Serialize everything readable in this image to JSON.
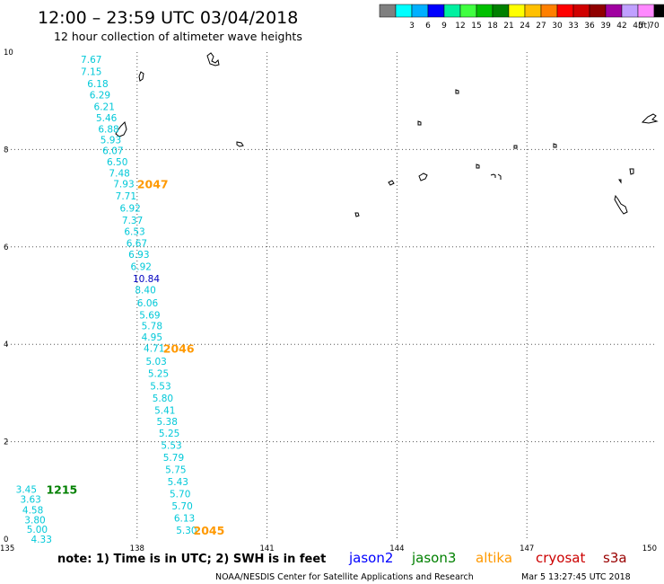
{
  "chart_data": {
    "type": "scatter",
    "title": "12:00 – 23:59 UTC 03/04/2018",
    "subtitle": "12 hour collection of altimeter wave heights",
    "xlim": [
      135,
      150
    ],
    "ylim": [
      0,
      10
    ],
    "x_ticks": [
      "135",
      "138",
      "141",
      "144",
      "147",
      "150"
    ],
    "y_ticks": [
      "0",
      "2",
      "4",
      "6",
      "8",
      "10"
    ],
    "grid": true,
    "legend": {
      "unit": "(ft)",
      "bins": [
        {
          "label": "",
          "color": "#808080"
        },
        {
          "label": "3",
          "color": "#00ffff"
        },
        {
          "label": "6",
          "color": "#00b0ff"
        },
        {
          "label": "9",
          "color": "#0000ff"
        },
        {
          "label": "12",
          "color": "#00f0a0"
        },
        {
          "label": "15",
          "color": "#40ff40"
        },
        {
          "label": "18",
          "color": "#00c000"
        },
        {
          "label": "21",
          "color": "#008000"
        },
        {
          "label": "24",
          "color": "#ffff00"
        },
        {
          "label": "27",
          "color": "#ffc000"
        },
        {
          "label": "30",
          "color": "#ff8000"
        },
        {
          "label": "33",
          "color": "#ff0000"
        },
        {
          "label": "36",
          "color": "#d00000"
        },
        {
          "label": "39",
          "color": "#900000"
        },
        {
          "label": "42",
          "color": "#a000a0"
        },
        {
          "label": "45",
          "color": "#c0a0ff"
        },
        {
          "label": "70",
          "color": "#ff88ff"
        },
        {
          "label": "",
          "color": "#000000"
        }
      ]
    },
    "series": [
      {
        "name": "altika",
        "color": "#00c8d8",
        "points": [
          {
            "x": 136.7,
            "y": 9.85,
            "v": "7.67"
          },
          {
            "x": 136.7,
            "y": 9.6,
            "v": "7.15"
          },
          {
            "x": 136.85,
            "y": 9.35,
            "v": "6.18"
          },
          {
            "x": 136.9,
            "y": 9.12,
            "v": "6.29"
          },
          {
            "x": 137.0,
            "y": 8.88,
            "v": "6.21"
          },
          {
            "x": 137.05,
            "y": 8.65,
            "v": "5.46"
          },
          {
            "x": 137.1,
            "y": 8.42,
            "v": "6.88"
          },
          {
            "x": 137.15,
            "y": 8.2,
            "v": "5.93"
          },
          {
            "x": 137.2,
            "y": 7.98,
            "v": "6.07"
          },
          {
            "x": 137.3,
            "y": 7.75,
            "v": "6.50"
          },
          {
            "x": 137.35,
            "y": 7.52,
            "v": "7.48"
          },
          {
            "x": 137.45,
            "y": 7.3,
            "v": "7.93"
          },
          {
            "x": 137.5,
            "y": 7.05,
            "v": "7.71"
          },
          {
            "x": 137.6,
            "y": 6.8,
            "v": "6.92"
          },
          {
            "x": 137.65,
            "y": 6.55,
            "v": "7.37"
          },
          {
            "x": 137.7,
            "y": 6.32,
            "v": "6.53"
          },
          {
            "x": 137.75,
            "y": 6.08,
            "v": "6.67"
          },
          {
            "x": 137.8,
            "y": 5.85,
            "v": "6.93"
          },
          {
            "x": 137.85,
            "y": 5.6,
            "v": "6.92"
          },
          {
            "x": 137.9,
            "y": 5.35,
            "v": "10.84",
            "color": "#0000c0"
          },
          {
            "x": 137.95,
            "y": 5.12,
            "v": "8.40"
          },
          {
            "x": 138.0,
            "y": 4.85,
            "v": "6.06"
          },
          {
            "x": 138.05,
            "y": 4.6,
            "v": "5.69"
          },
          {
            "x": 138.1,
            "y": 4.38,
            "v": "5.78"
          },
          {
            "x": 138.1,
            "y": 4.15,
            "v": "4.95"
          },
          {
            "x": 138.15,
            "y": 3.92,
            "v": "4.71"
          },
          {
            "x": 138.2,
            "y": 3.65,
            "v": "5.03"
          },
          {
            "x": 138.25,
            "y": 3.4,
            "v": "5.25"
          },
          {
            "x": 138.3,
            "y": 3.15,
            "v": "5.53"
          },
          {
            "x": 138.35,
            "y": 2.9,
            "v": "5.80"
          },
          {
            "x": 138.4,
            "y": 2.65,
            "v": "5.41"
          },
          {
            "x": 138.45,
            "y": 2.42,
            "v": "5.38"
          },
          {
            "x": 138.5,
            "y": 2.18,
            "v": "5.25"
          },
          {
            "x": 138.55,
            "y": 1.93,
            "v": "5.53"
          },
          {
            "x": 138.6,
            "y": 1.68,
            "v": "5.79"
          },
          {
            "x": 138.65,
            "y": 1.43,
            "v": "5.75"
          },
          {
            "x": 138.7,
            "y": 1.18,
            "v": "5.43"
          },
          {
            "x": 138.75,
            "y": 0.93,
            "v": "5.70"
          },
          {
            "x": 138.8,
            "y": 0.68,
            "v": "5.70"
          },
          {
            "x": 138.85,
            "y": 0.43,
            "v": "6.13"
          },
          {
            "x": 138.9,
            "y": 0.18,
            "v": "5.30"
          }
        ]
      },
      {
        "name": "jason3",
        "color": "#00c8d8",
        "points": [
          {
            "x": 135.2,
            "y": 1.02,
            "v": "3.45"
          },
          {
            "x": 135.3,
            "y": 0.82,
            "v": "3.63"
          },
          {
            "x": 135.35,
            "y": 0.6,
            "v": "4.58"
          },
          {
            "x": 135.4,
            "y": 0.4,
            "v": "3.80"
          },
          {
            "x": 135.45,
            "y": 0.2,
            "v": "5.00"
          },
          {
            "x": 135.55,
            "y": 0.0,
            "v": "4.33"
          }
        ]
      }
    ],
    "time_labels": [
      {
        "x": 138.0,
        "y": 7.3,
        "v": "2047",
        "color": "#ff9900"
      },
      {
        "x": 138.6,
        "y": 3.92,
        "v": "2046",
        "color": "#ff9900"
      },
      {
        "x": 135.9,
        "y": 1.02,
        "v": "1215",
        "color": "#008000"
      },
      {
        "x": 139.3,
        "y": 0.18,
        "v": "2045",
        "color": "#ff9900"
      }
    ]
  },
  "footer": {
    "note": "note: 1) Time is in UTC; 2) SWH is in feet",
    "satellites": [
      {
        "name": "jason2",
        "color": "#0000ff"
      },
      {
        "name": "jason3",
        "color": "#008000"
      },
      {
        "name": "altika",
        "color": "#ff9900"
      },
      {
        "name": "cryosat",
        "color": "#cc0000"
      },
      {
        "name": "s3a",
        "color": "#990000"
      }
    ],
    "credit": "NOAA/NESDIS Center for Satellite Applications and Research",
    "timestamp": "Mar  5 13:27:45 UTC 2018"
  }
}
